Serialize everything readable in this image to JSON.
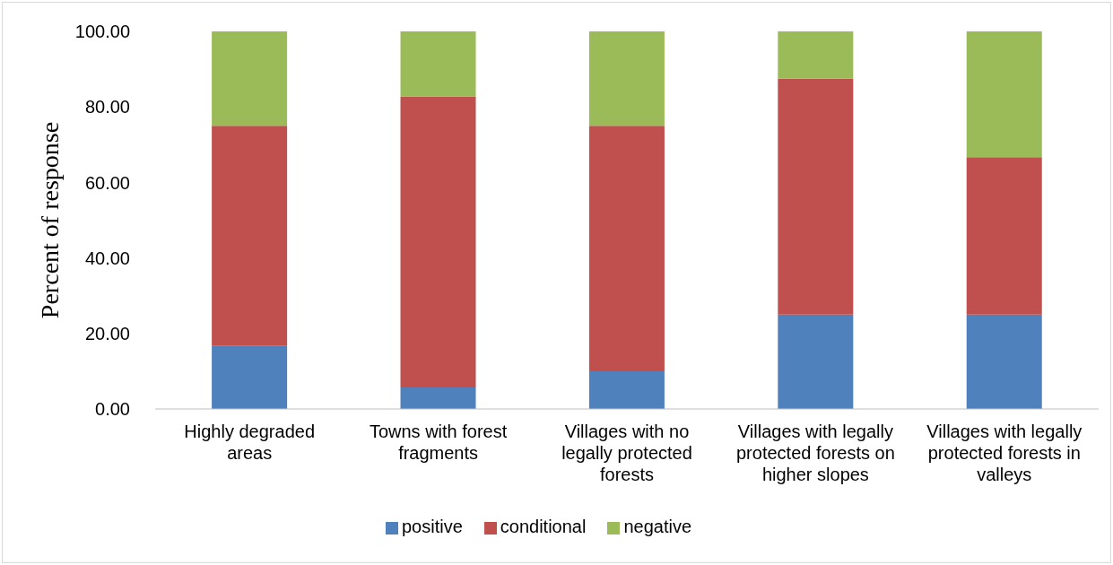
{
  "chart_data": {
    "type": "bar",
    "stacked": true,
    "ylabel": "Percent of response",
    "categories": [
      "Highly degraded areas",
      "Towns with forest fragments",
      "Villages with no legally protected forests",
      "Villages with legally protected forests on higher slopes",
      "Villages with legally protected forests in valleys"
    ],
    "series": [
      {
        "name": "positive",
        "color": "#4f81bd",
        "values": [
          16.7,
          5.7,
          10.0,
          25.0,
          25.0
        ]
      },
      {
        "name": "conditional",
        "color": "#c0504d",
        "values": [
          58.3,
          77.1,
          65.0,
          62.5,
          41.7
        ]
      },
      {
        "name": "negative",
        "color": "#9bbb59",
        "values": [
          25.0,
          17.2,
          25.0,
          12.5,
          33.3
        ]
      }
    ],
    "ylim": [
      0,
      100
    ],
    "yticks": [
      {
        "value": 0,
        "label": "0.00"
      },
      {
        "value": 20,
        "label": "20.00"
      },
      {
        "value": 40,
        "label": "40.00"
      },
      {
        "value": 60,
        "label": "60.00"
      },
      {
        "value": 80,
        "label": "80.00"
      },
      {
        "value": 100,
        "label": "100.00"
      }
    ],
    "grid": false,
    "legend": "bottom"
  }
}
